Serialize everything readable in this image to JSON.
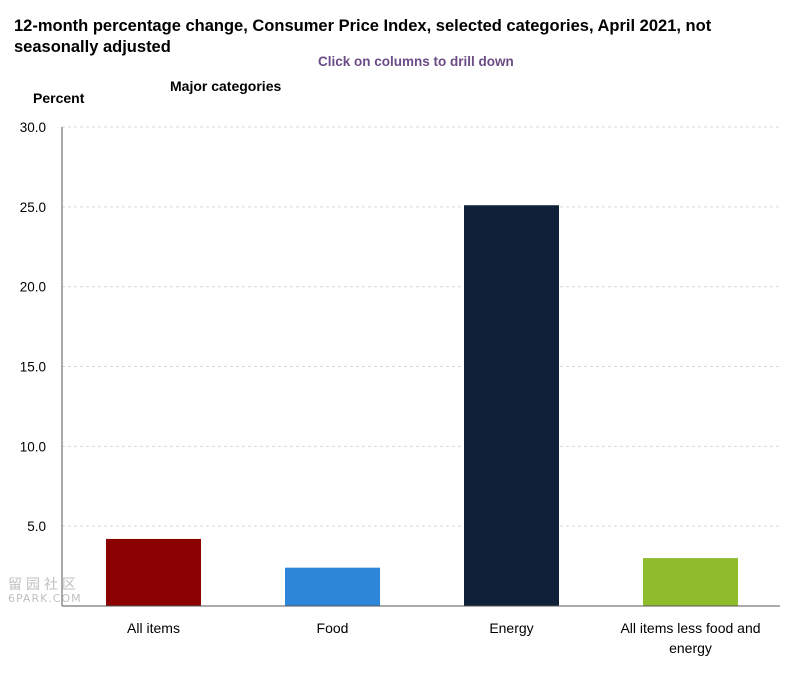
{
  "header": {
    "title": "12-month percentage change, Consumer Price Index, selected categories, April 2021, not seasonally adjusted",
    "drill_hint": "Click on columns to drill down",
    "y_unit": "Percent",
    "subheading": "Major categories"
  },
  "watermark": {
    "line1": "留园社区",
    "line2": "6PARK.COM"
  },
  "chart_data": {
    "type": "bar",
    "title": "12-month percentage change, Consumer Price Index, selected categories, April 2021, not seasonally adjusted",
    "subtitle": "Major categories",
    "ylabel": "Percent",
    "xlabel": "",
    "ylim": [
      0,
      30
    ],
    "yticks": [
      0,
      5,
      10,
      15,
      20,
      25,
      30
    ],
    "ytick_labels": [
      "",
      "5.0",
      "10.0",
      "15.0",
      "20.0",
      "25.0",
      "30.0"
    ],
    "grid": true,
    "categories": [
      "All items",
      "Food",
      "Energy",
      "All items less food and energy"
    ],
    "category_lines": [
      [
        "All items"
      ],
      [
        "Food"
      ],
      [
        "Energy"
      ],
      [
        "All items less food and",
        "energy"
      ]
    ],
    "values": [
      4.2,
      2.4,
      25.1,
      3.0
    ],
    "colors": [
      "#8b0000",
      "#2e86d8",
      "#0f2139",
      "#8fbc2b"
    ]
  }
}
